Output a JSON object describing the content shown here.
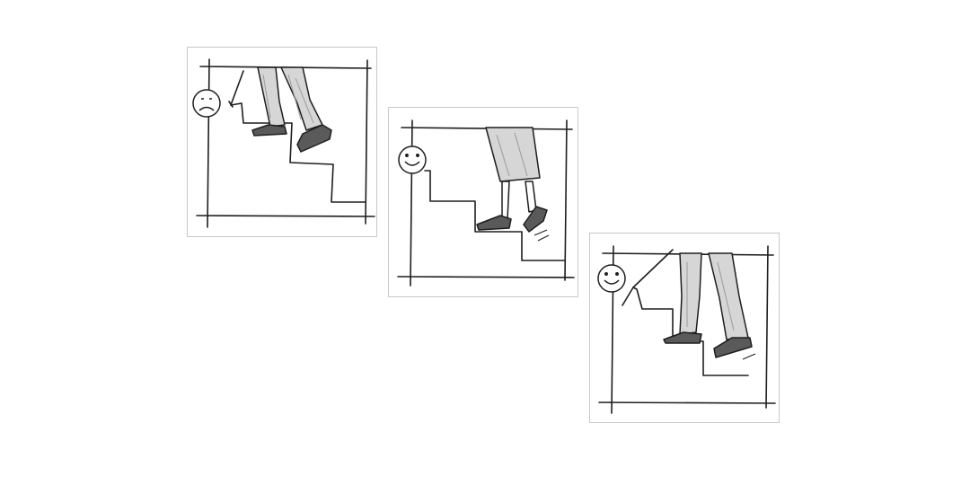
{
  "panels": [
    {
      "mood": "unhappy",
      "face_icon": "sad-face-icon",
      "cane": true
    },
    {
      "mood": "happy",
      "face_icon": "smiley-face-icon",
      "cane": false
    },
    {
      "mood": "happy",
      "face_icon": "smiley-face-icon",
      "cane": true
    }
  ],
  "colors": {
    "ink": "#1e1e1e",
    "panel_border": "#c9c9c9",
    "shade": "#9a9a9a",
    "trouser_fill": "#d6d6d6"
  }
}
